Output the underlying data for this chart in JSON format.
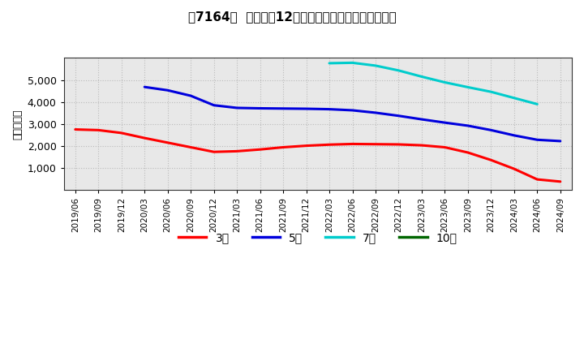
{
  "title": "［7164］  経常利益12か月移動合計の標準偏差の推移",
  "ylabel": "（百万円）",
  "background_color": "#ffffff",
  "plot_bg_color": "#e8e8e8",
  "grid_color": "#bbbbbb",
  "ylim": [
    0,
    6000
  ],
  "yticks": [
    1000,
    2000,
    3000,
    4000,
    5000
  ],
  "series": {
    "3年": {
      "color": "#ff0000",
      "data": [
        [
          "2019/06",
          2750
        ],
        [
          "2019/09",
          2720
        ],
        [
          "2019/12",
          2590
        ],
        [
          "2020/03",
          2360
        ],
        [
          "2020/06",
          2150
        ],
        [
          "2020/09",
          1940
        ],
        [
          "2020/12",
          1730
        ],
        [
          "2021/03",
          1760
        ],
        [
          "2021/06",
          1840
        ],
        [
          "2021/09",
          1940
        ],
        [
          "2021/12",
          2010
        ],
        [
          "2022/03",
          2060
        ],
        [
          "2022/06",
          2090
        ],
        [
          "2022/09",
          2080
        ],
        [
          "2022/12",
          2070
        ],
        [
          "2023/03",
          2030
        ],
        [
          "2023/06",
          1940
        ],
        [
          "2023/09",
          1700
        ],
        [
          "2023/12",
          1360
        ],
        [
          "2024/03",
          960
        ],
        [
          "2024/06",
          480
        ],
        [
          "2024/09",
          380
        ]
      ]
    },
    "5年": {
      "color": "#0000dd",
      "data": [
        [
          "2020/03",
          4680
        ],
        [
          "2020/06",
          4530
        ],
        [
          "2020/09",
          4280
        ],
        [
          "2020/12",
          3850
        ],
        [
          "2021/03",
          3730
        ],
        [
          "2021/06",
          3710
        ],
        [
          "2021/09",
          3700
        ],
        [
          "2021/12",
          3690
        ],
        [
          "2022/03",
          3670
        ],
        [
          "2022/06",
          3620
        ],
        [
          "2022/09",
          3510
        ],
        [
          "2022/12",
          3370
        ],
        [
          "2023/03",
          3210
        ],
        [
          "2023/06",
          3060
        ],
        [
          "2023/09",
          2920
        ],
        [
          "2023/12",
          2720
        ],
        [
          "2024/03",
          2480
        ],
        [
          "2024/06",
          2280
        ],
        [
          "2024/09",
          2220
        ]
      ]
    },
    "7年": {
      "color": "#00cccc",
      "data": [
        [
          "2022/03",
          5760
        ],
        [
          "2022/06",
          5780
        ],
        [
          "2022/09",
          5650
        ],
        [
          "2022/12",
          5430
        ],
        [
          "2023/03",
          5150
        ],
        [
          "2023/06",
          4890
        ],
        [
          "2023/09",
          4670
        ],
        [
          "2023/12",
          4460
        ],
        [
          "2024/03",
          4180
        ],
        [
          "2024/06",
          3900
        ]
      ]
    },
    "10年": {
      "color": "#006600",
      "data": []
    }
  },
  "xtick_labels": [
    "2019/06",
    "2019/09",
    "2019/12",
    "2020/03",
    "2020/06",
    "2020/09",
    "2020/12",
    "2021/03",
    "2021/06",
    "2021/09",
    "2021/12",
    "2022/03",
    "2022/06",
    "2022/09",
    "2022/12",
    "2023/03",
    "2023/06",
    "2023/09",
    "2023/12",
    "2024/03",
    "2024/06",
    "2024/09"
  ],
  "legend_labels": [
    "3年",
    "5年",
    "7年",
    "10年"
  ],
  "legend_colors": [
    "#ff0000",
    "#0000dd",
    "#00cccc",
    "#006600"
  ]
}
